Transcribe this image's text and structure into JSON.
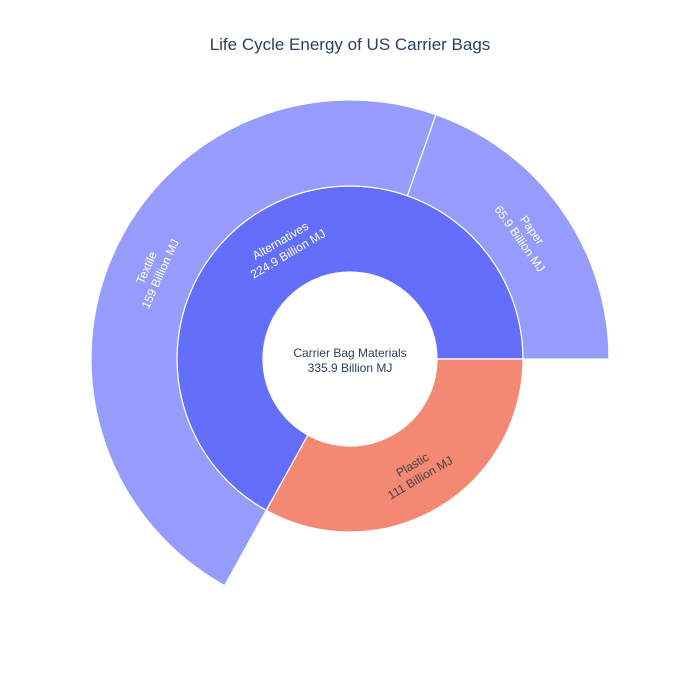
{
  "chart_data": {
    "type": "sunburst",
    "title": "Life Cycle Energy of US Carrier Bags",
    "unit": "Billion MJ",
    "root": {
      "label": "Carrier Bag Materials",
      "value_text": "335.9 Billion MJ",
      "value": 335.9
    },
    "children": [
      {
        "label": "Alternatives",
        "value_text": "224.9 Billion MJ",
        "value": 224.9,
        "color": "#636efa",
        "children": [
          {
            "label": "Textile",
            "value_text": "159 Billion MJ",
            "value": 159,
            "color": "#959cfb"
          },
          {
            "label": "Paper",
            "value_text": "65.9 Billion MJ",
            "value": 65.9,
            "color": "#959cfb"
          }
        ]
      },
      {
        "label": "Plastic",
        "value_text": "111 Billion MJ",
        "value": 111,
        "color": "#f38873",
        "children": []
      }
    ]
  }
}
